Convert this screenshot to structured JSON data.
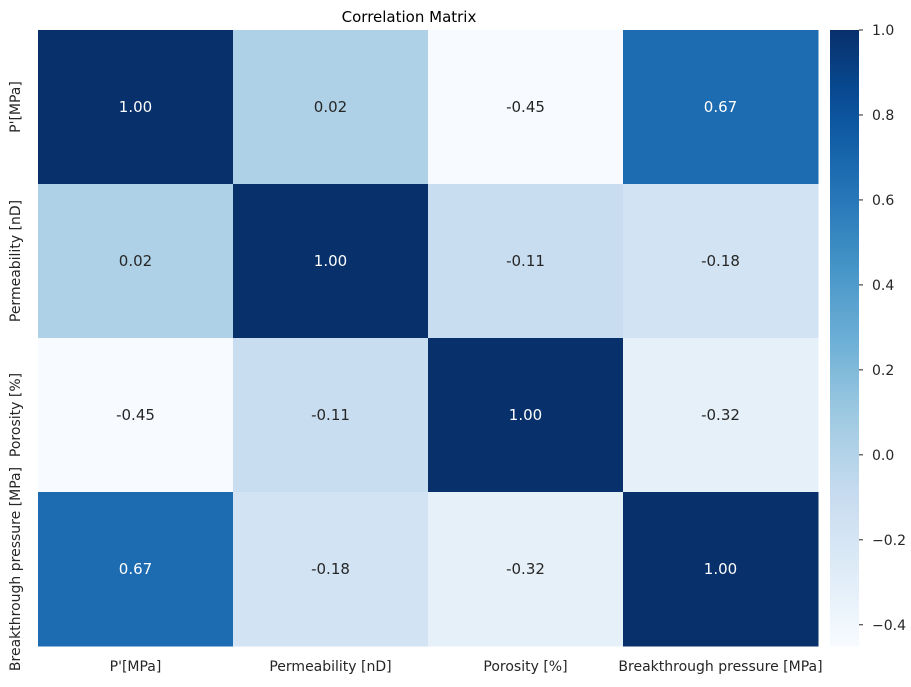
{
  "chart_data": {
    "type": "heatmap",
    "title": "Correlation Matrix",
    "x_labels": [
      "P'[MPa]",
      "Permeability [nD]",
      "Porosity [%]",
      "Breakthrough pressure [MPa]"
    ],
    "y_labels": [
      "P'[MPa]",
      "Permeability [nD]",
      "Porosity [%]",
      "Breakthrough pressure [MPa]"
    ],
    "values": [
      [
        1.0,
        0.02,
        -0.45,
        0.67
      ],
      [
        0.02,
        1.0,
        -0.11,
        -0.18
      ],
      [
        -0.45,
        -0.11,
        1.0,
        -0.32
      ],
      [
        0.67,
        -0.18,
        -0.32,
        1.0
      ]
    ],
    "value_format": "2 decimals",
    "colormap": "Blues",
    "vmin": -0.45,
    "vmax": 1.0,
    "colorbar_ticks": [
      1.0,
      0.8,
      0.6,
      0.4,
      0.2,
      0.0,
      -0.2,
      -0.4
    ],
    "colorbar_tick_labels": [
      "1.0",
      "0.8",
      "0.6",
      "0.4",
      "0.2",
      "0.0",
      "−0.2",
      "−0.4"
    ],
    "annotation_colors": {
      "dark": "#262626",
      "light": "#ffffff"
    }
  }
}
